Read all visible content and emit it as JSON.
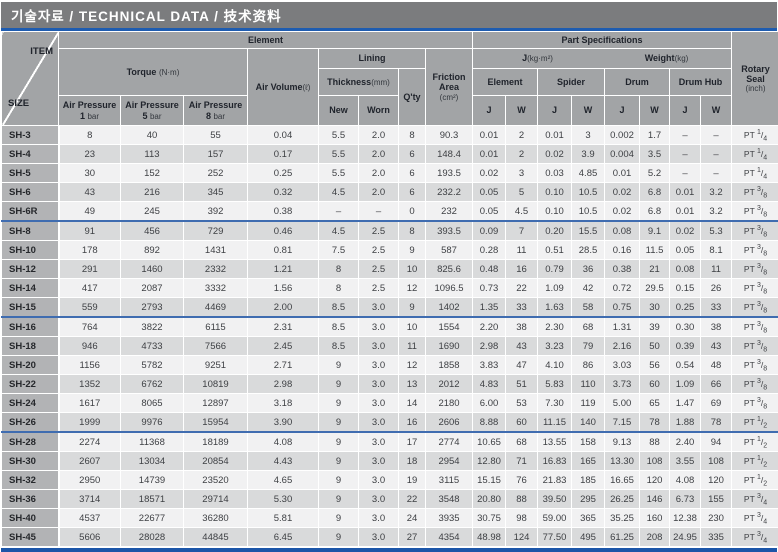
{
  "title": "기술자료 / TECHNICAL DATA / 技术资料",
  "colors": {
    "title_bg": "#7b7c7e",
    "accent_blue": "#1e5cb0",
    "divider_blue": "#3f6cb0",
    "header_bg": "#a2a4a6",
    "size_col_bg": "#b2b3b5",
    "row_light": "#f1f1f2",
    "row_dark": "#d9dadb"
  },
  "header": {
    "item": "ITEM",
    "size": "SIZE",
    "element_group": "Element",
    "part_spec_group": "Part Specifications",
    "torque": {
      "label": "Torque",
      "unit": "(N·m)"
    },
    "air_pressures": [
      {
        "line1": "Air Pressure",
        "num": "1",
        "unit": "bar"
      },
      {
        "line1": "Air Pressure",
        "num": "5",
        "unit": "bar"
      },
      {
        "line1": "Air Pressure",
        "num": "8",
        "unit": "bar"
      }
    ],
    "air_volume": {
      "label": "Air Volume",
      "unit": "(ℓ)"
    },
    "lining": "Lining",
    "thickness": {
      "label": "Thickness",
      "unit": "(mm)"
    },
    "new": "New",
    "worn": "Worn",
    "qty": "Q'ty",
    "friction": {
      "label": "Friction Area",
      "unit": "(cm²)"
    },
    "j_unit": {
      "label": "J",
      "unit": "(kg·m²)"
    },
    "weight_unit": {
      "label": "Weight",
      "unit": "(kg)"
    },
    "subgroups": [
      "Element",
      "Spider",
      "Drum",
      "Drum Hub"
    ],
    "jw": [
      "J",
      "W"
    ],
    "rotary": {
      "label": "Rotary Seal",
      "unit": "(inch)"
    }
  },
  "table": {
    "value_columns": [
      "torque-1bar",
      "torque-5bar",
      "torque-8bar",
      "air-volume",
      "lining-new",
      "lining-worn",
      "qty",
      "friction-area",
      "element-j",
      "element-w",
      "spider-j",
      "spider-w",
      "drum-j",
      "drum-w",
      "drumhub-j",
      "drumhub-w"
    ],
    "rows": [
      {
        "size": "SH-3",
        "values": [
          "8",
          "40",
          "55",
          "0.04",
          "5.5",
          "2.0",
          "8",
          "90.3",
          "0.01",
          "2",
          "0.01",
          "3",
          "0.002",
          "1.7",
          "–",
          "–"
        ],
        "seal": {
          "prefix": "PT",
          "num": "1",
          "den": "4"
        },
        "divider_after": false
      },
      {
        "size": "SH-4",
        "values": [
          "23",
          "113",
          "157",
          "0.17",
          "5.5",
          "2.0",
          "6",
          "148.4",
          "0.01",
          "2",
          "0.02",
          "3.9",
          "0.004",
          "3.5",
          "–",
          "–"
        ],
        "seal": {
          "prefix": "PT",
          "num": "1",
          "den": "4"
        },
        "divider_after": false
      },
      {
        "size": "SH-5",
        "values": [
          "30",
          "152",
          "252",
          "0.25",
          "5.5",
          "2.0",
          "6",
          "193.5",
          "0.02",
          "3",
          "0.03",
          "4.85",
          "0.01",
          "5.2",
          "–",
          "–"
        ],
        "seal": {
          "prefix": "PT",
          "num": "1",
          "den": "4"
        },
        "divider_after": false
      },
      {
        "size": "SH-6",
        "values": [
          "43",
          "216",
          "345",
          "0.32",
          "4.5",
          "2.0",
          "6",
          "232.2",
          "0.05",
          "5",
          "0.10",
          "10.5",
          "0.02",
          "6.8",
          "0.01",
          "3.2"
        ],
        "seal": {
          "prefix": "PT",
          "num": "3",
          "den": "8"
        },
        "divider_after": false
      },
      {
        "size": "SH-6R",
        "values": [
          "49",
          "245",
          "392",
          "0.38",
          "–",
          "–",
          "0",
          "232",
          "0.05",
          "4.5",
          "0.10",
          "10.5",
          "0.02",
          "6.8",
          "0.01",
          "3.2"
        ],
        "seal": {
          "prefix": "PT",
          "num": "3",
          "den": "8"
        },
        "divider_after": true
      },
      {
        "size": "SH-8",
        "values": [
          "91",
          "456",
          "729",
          "0.46",
          "4.5",
          "2.5",
          "8",
          "393.5",
          "0.09",
          "7",
          "0.20",
          "15.5",
          "0.08",
          "9.1",
          "0.02",
          "5.3"
        ],
        "seal": {
          "prefix": "PT",
          "num": "3",
          "den": "8"
        },
        "divider_after": false
      },
      {
        "size": "SH-10",
        "values": [
          "178",
          "892",
          "1431",
          "0.81",
          "7.5",
          "2.5",
          "9",
          "587",
          "0.28",
          "11",
          "0.51",
          "28.5",
          "0.16",
          "11.5",
          "0.05",
          "8.1"
        ],
        "seal": {
          "prefix": "PT",
          "num": "3",
          "den": "8"
        },
        "divider_after": false
      },
      {
        "size": "SH-12",
        "values": [
          "291",
          "1460",
          "2332",
          "1.21",
          "8",
          "2.5",
          "10",
          "825.6",
          "0.48",
          "16",
          "0.79",
          "36",
          "0.38",
          "21",
          "0.08",
          "11"
        ],
        "seal": {
          "prefix": "PT",
          "num": "3",
          "den": "8"
        },
        "divider_after": false
      },
      {
        "size": "SH-14",
        "values": [
          "417",
          "2087",
          "3332",
          "1.56",
          "8",
          "2.5",
          "12",
          "1096.5",
          "0.73",
          "22",
          "1.09",
          "42",
          "0.72",
          "29.5",
          "0.15",
          "26"
        ],
        "seal": {
          "prefix": "PT",
          "num": "3",
          "den": "8"
        },
        "divider_after": false
      },
      {
        "size": "SH-15",
        "values": [
          "559",
          "2793",
          "4469",
          "2.00",
          "8.5",
          "3.0",
          "9",
          "1402",
          "1.35",
          "33",
          "1.63",
          "58",
          "0.75",
          "30",
          "0.25",
          "33"
        ],
        "seal": {
          "prefix": "PT",
          "num": "3",
          "den": "8"
        },
        "divider_after": true
      },
      {
        "size": "SH-16",
        "values": [
          "764",
          "3822",
          "6115",
          "2.31",
          "8.5",
          "3.0",
          "10",
          "1554",
          "2.20",
          "38",
          "2.30",
          "68",
          "1.31",
          "39",
          "0.30",
          "38"
        ],
        "seal": {
          "prefix": "PT",
          "num": "3",
          "den": "8"
        },
        "divider_after": false
      },
      {
        "size": "SH-18",
        "values": [
          "946",
          "4733",
          "7566",
          "2.45",
          "8.5",
          "3.0",
          "11",
          "1690",
          "2.98",
          "43",
          "3.23",
          "79",
          "2.16",
          "50",
          "0.39",
          "43"
        ],
        "seal": {
          "prefix": "PT",
          "num": "3",
          "den": "8"
        },
        "divider_after": false
      },
      {
        "size": "SH-20",
        "values": [
          "1156",
          "5782",
          "9251",
          "2.71",
          "9",
          "3.0",
          "12",
          "1858",
          "3.83",
          "47",
          "4.10",
          "86",
          "3.03",
          "56",
          "0.54",
          "48"
        ],
        "seal": {
          "prefix": "PT",
          "num": "3",
          "den": "8"
        },
        "divider_after": false
      },
      {
        "size": "SH-22",
        "values": [
          "1352",
          "6762",
          "10819",
          "2.98",
          "9",
          "3.0",
          "13",
          "2012",
          "4.83",
          "51",
          "5.83",
          "110",
          "3.73",
          "60",
          "1.09",
          "66"
        ],
        "seal": {
          "prefix": "PT",
          "num": "3",
          "den": "8"
        },
        "divider_after": false
      },
      {
        "size": "SH-24",
        "values": [
          "1617",
          "8065",
          "12897",
          "3.18",
          "9",
          "3.0",
          "14",
          "2180",
          "6.00",
          "53",
          "7.30",
          "119",
          "5.00",
          "65",
          "1.47",
          "69"
        ],
        "seal": {
          "prefix": "PT",
          "num": "3",
          "den": "8"
        },
        "divider_after": false
      },
      {
        "size": "SH-26",
        "values": [
          "1999",
          "9976",
          "15954",
          "3.90",
          "9",
          "3.0",
          "16",
          "2606",
          "8.88",
          "60",
          "11.15",
          "140",
          "7.15",
          "78",
          "1.88",
          "78"
        ],
        "seal": {
          "prefix": "PT",
          "num": "1",
          "den": "2"
        },
        "divider_after": true
      },
      {
        "size": "SH-28",
        "values": [
          "2274",
          "11368",
          "18189",
          "4.08",
          "9",
          "3.0",
          "17",
          "2774",
          "10.65",
          "68",
          "13.55",
          "158",
          "9.13",
          "88",
          "2.40",
          "94"
        ],
        "seal": {
          "prefix": "PT",
          "num": "1",
          "den": "2"
        },
        "divider_after": false
      },
      {
        "size": "SH-30",
        "values": [
          "2607",
          "13034",
          "20854",
          "4.43",
          "9",
          "3.0",
          "18",
          "2954",
          "12.80",
          "71",
          "16.83",
          "165",
          "13.30",
          "108",
          "3.55",
          "108"
        ],
        "seal": {
          "prefix": "PT",
          "num": "1",
          "den": "2"
        },
        "divider_after": false
      },
      {
        "size": "SH-32",
        "values": [
          "2950",
          "14739",
          "23520",
          "4.65",
          "9",
          "3.0",
          "19",
          "3115",
          "15.15",
          "76",
          "21.83",
          "185",
          "16.65",
          "120",
          "4.08",
          "120"
        ],
        "seal": {
          "prefix": "PT",
          "num": "1",
          "den": "2"
        },
        "divider_after": false
      },
      {
        "size": "SH-36",
        "values": [
          "3714",
          "18571",
          "29714",
          "5.30",
          "9",
          "3.0",
          "22",
          "3548",
          "20.80",
          "88",
          "39.50",
          "295",
          "26.25",
          "146",
          "6.73",
          "155"
        ],
        "seal": {
          "prefix": "PT",
          "num": "3",
          "den": "4"
        },
        "divider_after": false
      },
      {
        "size": "SH-40",
        "values": [
          "4537",
          "22677",
          "36280",
          "5.81",
          "9",
          "3.0",
          "24",
          "3935",
          "30.75",
          "98",
          "59.00",
          "365",
          "35.25",
          "160",
          "12.38",
          "230"
        ],
        "seal": {
          "prefix": "PT",
          "num": "3",
          "den": "4"
        },
        "divider_after": false
      },
      {
        "size": "SH-45",
        "values": [
          "5606",
          "28028",
          "44845",
          "6.45",
          "9",
          "3.0",
          "27",
          "4354",
          "48.98",
          "124",
          "77.50",
          "495",
          "61.25",
          "208",
          "24.95",
          "335"
        ],
        "seal": {
          "prefix": "PT",
          "num": "3",
          "den": "4"
        },
        "divider_after": false
      }
    ]
  }
}
